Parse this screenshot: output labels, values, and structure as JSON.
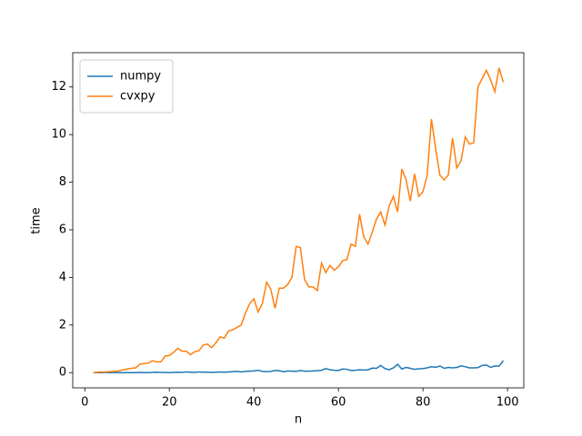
{
  "chart_data": {
    "type": "line",
    "x": [
      2,
      3,
      4,
      5,
      6,
      7,
      8,
      9,
      10,
      11,
      12,
      13,
      14,
      15,
      16,
      17,
      18,
      19,
      20,
      21,
      22,
      23,
      24,
      25,
      26,
      27,
      28,
      29,
      30,
      31,
      32,
      33,
      34,
      35,
      36,
      37,
      38,
      39,
      40,
      41,
      42,
      43,
      44,
      45,
      46,
      47,
      48,
      49,
      50,
      51,
      52,
      53,
      54,
      55,
      56,
      57,
      58,
      59,
      60,
      61,
      62,
      63,
      64,
      65,
      66,
      67,
      68,
      69,
      70,
      71,
      72,
      73,
      74,
      75,
      76,
      77,
      78,
      79,
      80,
      81,
      82,
      83,
      84,
      85,
      86,
      87,
      88,
      89,
      90,
      91,
      92,
      93,
      94,
      95,
      96,
      97,
      98,
      99
    ],
    "series": [
      {
        "name": "numpy",
        "color": "#1f77b4",
        "values": [
          0.0,
          0.0,
          0.0,
          0.01,
          0.0,
          0.01,
          0.0,
          0.0,
          0.0,
          0.0,
          0.0,
          0.01,
          0.0,
          0.0,
          0.01,
          0.02,
          0.01,
          0.01,
          0.0,
          0.01,
          0.02,
          0.01,
          0.03,
          0.02,
          0.01,
          0.03,
          0.02,
          0.02,
          0.01,
          0.02,
          0.03,
          0.02,
          0.03,
          0.04,
          0.05,
          0.03,
          0.05,
          0.06,
          0.07,
          0.1,
          0.05,
          0.04,
          0.05,
          0.09,
          0.08,
          0.04,
          0.07,
          0.06,
          0.05,
          0.09,
          0.06,
          0.06,
          0.07,
          0.08,
          0.1,
          0.17,
          0.12,
          0.1,
          0.09,
          0.15,
          0.14,
          0.09,
          0.1,
          0.12,
          0.11,
          0.12,
          0.19,
          0.18,
          0.3,
          0.17,
          0.12,
          0.2,
          0.35,
          0.15,
          0.22,
          0.18,
          0.14,
          0.16,
          0.17,
          0.2,
          0.25,
          0.22,
          0.28,
          0.18,
          0.22,
          0.2,
          0.22,
          0.28,
          0.25,
          0.2,
          0.2,
          0.21,
          0.3,
          0.32,
          0.22,
          0.28,
          0.27,
          0.5
        ]
      },
      {
        "name": "cvxpy",
        "color": "#ff7f0e",
        "values": [
          0.0,
          0.02,
          0.03,
          0.03,
          0.04,
          0.05,
          0.07,
          0.12,
          0.15,
          0.18,
          0.2,
          0.35,
          0.38,
          0.4,
          0.5,
          0.45,
          0.45,
          0.7,
          0.72,
          0.85,
          1.02,
          0.9,
          0.9,
          0.75,
          0.88,
          0.92,
          1.15,
          1.2,
          1.05,
          1.25,
          1.5,
          1.45,
          1.75,
          1.8,
          1.9,
          2.0,
          2.5,
          2.9,
          3.1,
          2.55,
          2.9,
          3.8,
          3.5,
          2.7,
          3.55,
          3.55,
          3.7,
          4.0,
          5.3,
          5.25,
          3.9,
          3.6,
          3.6,
          3.45,
          4.6,
          4.2,
          4.5,
          4.3,
          4.45,
          4.7,
          4.75,
          5.4,
          5.3,
          6.65,
          5.7,
          5.4,
          5.9,
          6.45,
          6.75,
          6.2,
          7.0,
          7.4,
          6.75,
          8.55,
          8.1,
          7.2,
          8.35,
          7.4,
          7.6,
          8.3,
          10.65,
          9.4,
          8.3,
          8.1,
          8.3,
          9.85,
          8.6,
          8.9,
          9.9,
          9.6,
          9.65,
          12.0,
          12.35,
          12.7,
          12.3,
          11.8,
          12.8,
          12.2
        ]
      }
    ],
    "xlabel": "n",
    "ylabel": "time",
    "xlim": [
      -2.85,
      103.85
    ],
    "xticks": [
      0,
      20,
      40,
      60,
      80,
      100
    ],
    "ylim": [
      -0.64,
      13.44
    ],
    "yticks": [
      0,
      2,
      4,
      6,
      8,
      10,
      12
    ],
    "legend": "upper left",
    "grid": false
  }
}
